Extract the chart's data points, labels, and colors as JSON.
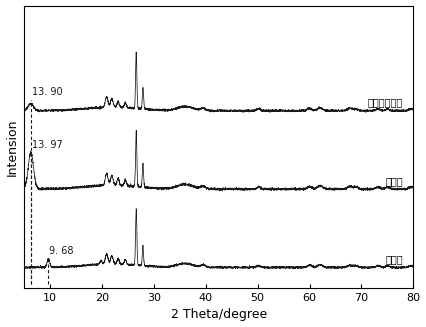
{
  "title": "",
  "xlabel": "2 Theta/degree",
  "ylabel": "Intension",
  "xmin": 5,
  "xmax": 80,
  "labels": [
    "蒙脱土",
    "有机土",
    "固体酸傅化剂"
  ],
  "annotations": [
    {
      "x": 9.68,
      "label": "9. 68",
      "curve": 0
    },
    {
      "x": 6.3,
      "label": "13. 97",
      "curve": 1
    },
    {
      "x": 6.3,
      "label": "13. 90",
      "curve": 2
    }
  ],
  "offsets": [
    2.0,
    1.0,
    0.0
  ],
  "background": "#ffffff",
  "line_color": "#1a1a1a",
  "seed": 42
}
